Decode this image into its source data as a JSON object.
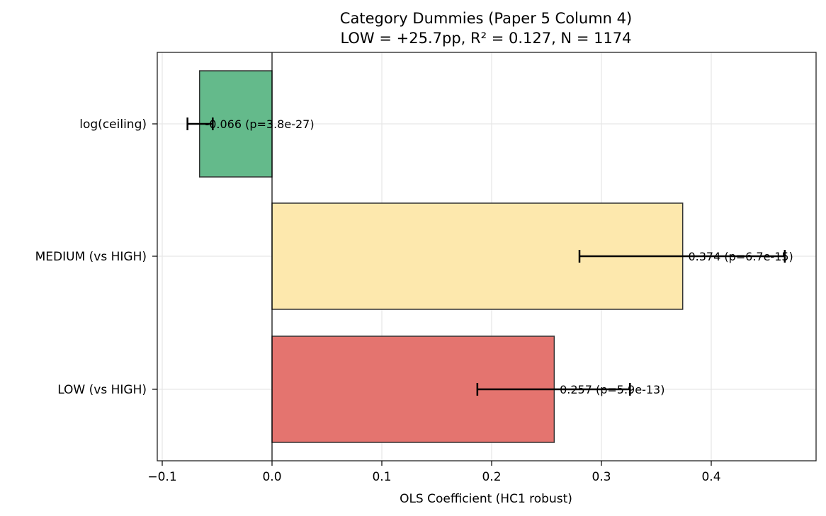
{
  "chart_data": {
    "type": "bar",
    "orientation": "horizontal",
    "title": "Category Dummies (Paper 5 Column 4)",
    "subtitle": "LOW = +25.7pp, R² = 0.127, N = 1174",
    "xlabel": "OLS Coefficient (HC1 robust)",
    "ylabel": "",
    "xlim": [
      -0.105,
      0.495
    ],
    "xticks": [
      -0.1,
      0.0,
      0.1,
      0.2,
      0.3,
      0.4
    ],
    "xtick_labels": [
      "−0.1",
      "0.0",
      "0.1",
      "0.2",
      "0.3",
      "0.4"
    ],
    "grid": true,
    "categories": [
      "log(ceiling)",
      "MEDIUM (vs HIGH)",
      "LOW (vs HIGH)"
    ],
    "values": [
      -0.066,
      0.374,
      0.257
    ],
    "ci_low": [
      -0.077,
      0.28,
      0.187
    ],
    "ci_high": [
      -0.054,
      0.467,
      0.326
    ],
    "colors": [
      "#5fb887",
      "#fde7aa",
      "#e3706a"
    ],
    "annotations": [
      "-0.066 (p=3.8e-27)",
      "0.374 (p=6.7e-15)",
      "0.257 (p=5.9e-13)"
    ]
  }
}
